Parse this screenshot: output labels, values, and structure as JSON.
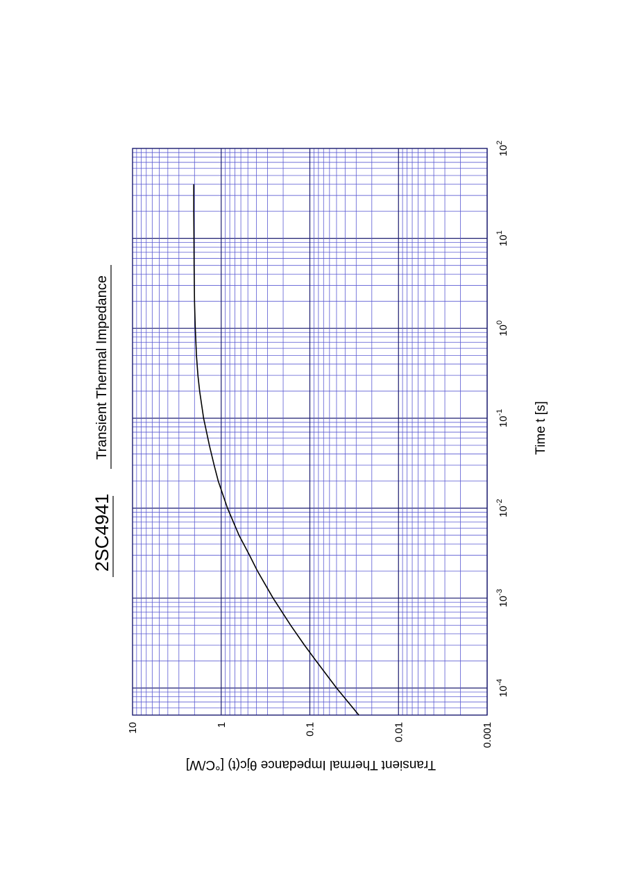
{
  "header": {
    "part_number": "2SC4941",
    "title": "Transient Thermal Impedance"
  },
  "chart_data": {
    "type": "line",
    "orientation": "rotated-90-counterclockwise",
    "xlabel": "Time  t  [s]",
    "ylabel": "Transient Thermal Impedance   θjc(t)  [°C/W]",
    "x_scale": "log",
    "y_scale": "log",
    "xlim": [
      5e-05,
      100
    ],
    "ylim": [
      0.001,
      10
    ],
    "x_ticks": [
      {
        "base": "10",
        "exp": "-4",
        "value": 0.0001
      },
      {
        "base": "10",
        "exp": "-3",
        "value": 0.001
      },
      {
        "base": "10",
        "exp": "-2",
        "value": 0.01
      },
      {
        "base": "10",
        "exp": "-1",
        "value": 0.1
      },
      {
        "base": "10",
        "exp": "0",
        "value": 1
      },
      {
        "base": "10",
        "exp": "1",
        "value": 10
      },
      {
        "base": "10",
        "exp": "2",
        "value": 100
      }
    ],
    "y_ticks": [
      {
        "label": "0.001",
        "value": 0.001
      },
      {
        "label": "0.01",
        "value": 0.01
      },
      {
        "label": "0.1",
        "value": 0.1
      },
      {
        "label": "1",
        "value": 1
      },
      {
        "label": "10",
        "value": 10
      }
    ],
    "grid": true,
    "colors": {
      "grid_minor": "#5a5ad2",
      "grid_major": "#1a1a6e",
      "curve": "#000000"
    },
    "series": [
      {
        "x": [
          5e-05,
          0.0001,
          0.0002,
          0.0003,
          0.0005,
          0.001,
          0.002,
          0.003,
          0.005,
          0.01,
          0.02,
          0.03,
          0.05,
          0.1,
          0.2,
          0.3,
          0.5,
          1,
          2,
          5,
          10,
          20,
          40
        ],
        "y": [
          0.028,
          0.05,
          0.085,
          0.115,
          0.165,
          0.26,
          0.39,
          0.48,
          0.63,
          0.85,
          1.08,
          1.2,
          1.36,
          1.58,
          1.75,
          1.83,
          1.9,
          1.96,
          2.0,
          2.02,
          2.03,
          2.04,
          2.04
        ]
      }
    ]
  }
}
